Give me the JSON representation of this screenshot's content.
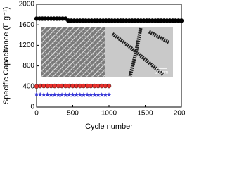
{
  "chart_data": {
    "type": "scatter",
    "x_label": "Cycle number",
    "y_label": "Specific Capacitance (F g⁻¹)",
    "inset_scale_label": "200nm",
    "xlim": [
      0,
      2000
    ],
    "xticks": [
      0,
      500,
      1000,
      1500,
      2000
    ],
    "ylim": [
      0,
      2000
    ],
    "yticks": [
      0,
      400,
      800,
      1200,
      1600,
      2000
    ],
    "series": [
      {
        "color": "#000000",
        "marker": "circle",
        "x": [
          0,
          40,
          80,
          120,
          160,
          200,
          240,
          280,
          320,
          360,
          400,
          440,
          480,
          520,
          560,
          600,
          640,
          680,
          720,
          760,
          800,
          840,
          880,
          920,
          960,
          1000,
          1040,
          1080,
          1120,
          1160,
          1200,
          1240,
          1280,
          1320,
          1360,
          1400,
          1440,
          1480,
          1520,
          1560,
          1600,
          1640,
          1680,
          1720,
          1760,
          1800,
          1840,
          1880,
          1920,
          1960,
          2000
        ],
        "values": [
          1720,
          1720,
          1720,
          1720,
          1720,
          1720,
          1720,
          1720,
          1720,
          1720,
          1720,
          1680,
          1680,
          1680,
          1680,
          1680,
          1680,
          1680,
          1680,
          1680,
          1680,
          1680,
          1680,
          1680,
          1680,
          1680,
          1680,
          1680,
          1680,
          1680,
          1680,
          1680,
          1680,
          1680,
          1680,
          1680,
          1680,
          1680,
          1680,
          1680,
          1680,
          1680,
          1680,
          1680,
          1680,
          1680,
          1680,
          1680,
          1680,
          1680,
          1680
        ]
      },
      {
        "color": "#e8302c",
        "marker": "circle",
        "x": [
          0,
          50,
          100,
          150,
          200,
          250,
          300,
          350,
          400,
          450,
          500,
          550,
          600,
          650,
          700,
          750,
          800,
          850,
          900,
          950,
          1000
        ],
        "values": [
          400,
          410,
          410,
          410,
          410,
          410,
          410,
          410,
          410,
          410,
          410,
          410,
          410,
          410,
          410,
          410,
          410,
          410,
          410,
          410,
          410
        ]
      },
      {
        "color": "#3a3ad8",
        "marker": "star",
        "x": [
          0,
          50,
          100,
          150,
          200,
          250,
          300,
          350,
          400,
          450,
          500,
          550,
          600,
          650,
          700,
          750,
          800,
          850,
          900,
          950,
          1000
        ],
        "values": [
          245,
          240,
          240,
          240,
          235,
          235,
          235,
          235,
          235,
          235,
          235,
          235,
          235,
          235,
          235,
          235,
          235,
          235,
          235,
          235,
          235
        ]
      }
    ]
  }
}
